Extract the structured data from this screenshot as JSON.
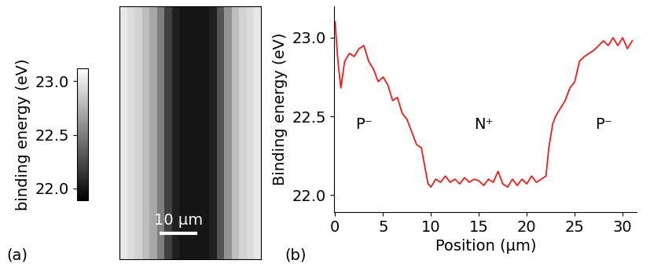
{
  "chart_data": [
    {
      "type": "heatmap",
      "panel_label": "(a)",
      "x": [
        1,
        3,
        5,
        7,
        9,
        11,
        13,
        15,
        17,
        19,
        21,
        23,
        25,
        27,
        29,
        31,
        33,
        35,
        37
      ],
      "cells": [
        [
          23.0,
          22.95,
          22.9,
          22.8,
          22.7,
          22.5,
          22.2,
          22.05,
          22.0,
          22.0,
          22.0,
          22.0,
          22.05,
          22.3,
          22.6,
          22.8,
          22.9,
          22.95,
          23.0
        ]
      ],
      "xlim": [
        0,
        38
      ],
      "ylim": [
        0,
        68
      ],
      "tick_labels": false,
      "colorbar": {
        "label": "binding energy (eV)",
        "range": [
          21.89,
          23.12
        ],
        "ticks": [
          {
            "value": 22,
            "label": "22.0"
          },
          {
            "value": 22.5,
            "label": "22.5"
          },
          {
            "value": 23,
            "label": "23.0"
          }
        ]
      },
      "scale_bar": {
        "x": 10.8,
        "y": 7,
        "length": 10,
        "label": "10 µm"
      }
    },
    {
      "type": "line",
      "panel_label": "(b)",
      "x_label": "Position (µm)",
      "y_label": "Binding energy (eV)",
      "color": "#e8201a",
      "x": [
        0,
        0.3,
        0.6,
        1,
        1.5,
        2,
        2.5,
        3,
        3.5,
        4,
        4.5,
        5,
        5.5,
        6,
        6.5,
        7,
        7.5,
        8,
        8.5,
        9,
        9.3,
        9.7,
        10,
        10.5,
        11,
        11.5,
        12,
        12.5,
        13,
        13.5,
        14,
        14.5,
        15,
        15.5,
        16,
        16.5,
        17,
        17.5,
        18,
        18.5,
        19,
        19.5,
        20,
        20.5,
        21,
        21.5,
        22,
        22.3,
        22.7,
        23,
        23.5,
        24,
        24.5,
        25,
        25.5,
        26,
        26.5,
        27,
        27.5,
        28,
        28.5,
        29,
        29.5,
        30,
        30.5,
        31
      ],
      "values": [
        23.1,
        22.85,
        22.68,
        22.85,
        22.9,
        22.88,
        22.93,
        22.95,
        22.85,
        22.8,
        22.72,
        22.75,
        22.7,
        22.6,
        22.62,
        22.52,
        22.48,
        22.4,
        22.32,
        22.3,
        22.2,
        22.07,
        22.05,
        22.1,
        22.08,
        22.12,
        22.08,
        22.1,
        22.07,
        22.11,
        22.08,
        22.1,
        22.09,
        22.06,
        22.1,
        22.08,
        22.15,
        22.07,
        22.05,
        22.1,
        22.06,
        22.1,
        22.07,
        22.12,
        22.08,
        22.1,
        22.12,
        22.3,
        22.45,
        22.5,
        22.55,
        22.6,
        22.68,
        22.72,
        22.85,
        22.88,
        22.9,
        22.92,
        22.95,
        22.98,
        22.95,
        23.0,
        22.95,
        23.0,
        22.93,
        22.98
      ],
      "xlim": [
        -0.1,
        31.5
      ],
      "ylim": [
        21.89,
        23.2
      ],
      "xticks": [
        0,
        5,
        10,
        15,
        20,
        25,
        30
      ],
      "yticks": [
        {
          "value": 22,
          "label": "22.0"
        },
        {
          "value": 22.5,
          "label": "22.5"
        },
        {
          "value": 23,
          "label": "23.0"
        }
      ],
      "annotations": [
        {
          "text": "P⁻",
          "x": 3.0,
          "y": 22.45
        },
        {
          "text": "N⁺",
          "x": 15.5,
          "y": 22.45
        },
        {
          "text": "P⁻",
          "x": 28.0,
          "y": 22.45
        }
      ]
    }
  ]
}
